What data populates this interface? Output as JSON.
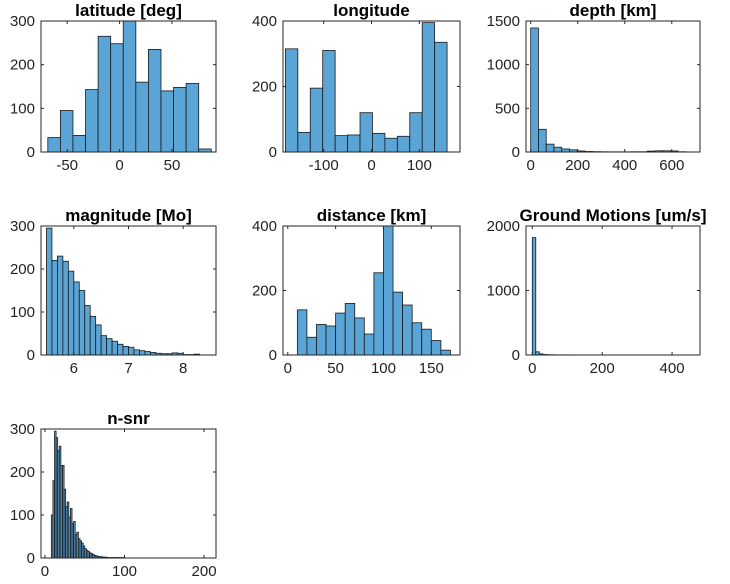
{
  "figure": {
    "background": "#ffffff",
    "bar_color": "#5ba4d6",
    "edge_color": "#1a1a1a"
  },
  "chart_data": [
    {
      "type": "bar",
      "title": "latitude [deg]",
      "xlim": [
        -75,
        92
      ],
      "ylim": [
        0,
        300
      ],
      "xticks": [
        -50,
        0,
        50
      ],
      "yticks": [
        0,
        100,
        200,
        300
      ],
      "bin_edges": [
        -68.5,
        -56.5,
        -44.5,
        -32.5,
        -20.5,
        -8.5,
        3.5,
        15.5,
        27.5,
        39.5,
        51.5,
        63.5,
        75.5,
        87.5
      ],
      "counts": [
        33,
        95,
        38,
        143,
        265,
        248,
        300,
        160,
        235,
        140,
        148,
        157,
        7,
        5
      ]
    },
    {
      "type": "bar",
      "title": "longitude",
      "xlim": [
        -185,
        185
      ],
      "ylim": [
        0,
        400
      ],
      "xticks": [
        -100,
        0,
        100
      ],
      "yticks": [
        0,
        200,
        400
      ],
      "bin_edges": [
        -180,
        -154,
        -128,
        -102,
        -76,
        -50,
        -24,
        2,
        28,
        54,
        80,
        106,
        132,
        158,
        184
      ],
      "counts": [
        315,
        60,
        195,
        310,
        50,
        52,
        120,
        57,
        42,
        48,
        120,
        395,
        335,
        0
      ]
    },
    {
      "type": "bar",
      "title": "depth [km]",
      "xlim": [
        -20,
        720
      ],
      "ylim": [
        0,
        1500
      ],
      "xticks": [
        0,
        200,
        400,
        600
      ],
      "yticks": [
        0,
        500,
        1000,
        1500
      ],
      "bin_edges": [
        0,
        33,
        66,
        99,
        132,
        165,
        198,
        231,
        264,
        297,
        330,
        363,
        396,
        429,
        462,
        495,
        528,
        561,
        594,
        627,
        660
      ],
      "counts": [
        1420,
        260,
        90,
        55,
        35,
        25,
        12,
        6,
        4,
        3,
        2,
        2,
        2,
        3,
        3,
        10,
        14,
        14,
        12,
        3
      ]
    },
    {
      "type": "bar",
      "title": "magnitude [Mo]",
      "xlim": [
        5.4,
        8.6
      ],
      "ylim": [
        0,
        300
      ],
      "xticks": [
        6,
        7,
        8
      ],
      "yticks": [
        0,
        100,
        200,
        300
      ],
      "bin_edges": [
        5.5,
        5.6,
        5.7,
        5.8,
        5.9,
        6.0,
        6.1,
        6.2,
        6.3,
        6.4,
        6.5,
        6.6,
        6.7,
        6.8,
        6.9,
        7.0,
        7.1,
        7.2,
        7.3,
        7.4,
        7.5,
        7.6,
        7.7,
        7.8,
        7.9,
        8.0,
        8.1,
        8.2,
        8.3
      ],
      "counts": [
        295,
        220,
        230,
        218,
        195,
        170,
        150,
        115,
        90,
        70,
        45,
        38,
        32,
        25,
        20,
        18,
        12,
        10,
        8,
        6,
        4,
        3,
        3,
        5,
        4,
        1,
        1,
        2
      ]
    },
    {
      "type": "bar",
      "title": "distance [km]",
      "xlim": [
        -5,
        180
      ],
      "ylim": [
        0,
        400
      ],
      "xticks": [
        0,
        50,
        100,
        150
      ],
      "yticks": [
        0,
        200,
        400
      ],
      "bin_edges": [
        10,
        20,
        30,
        40,
        50,
        60,
        70,
        80,
        90,
        100,
        110,
        120,
        130,
        140,
        150,
        160,
        170
      ],
      "counts": [
        140,
        55,
        95,
        90,
        130,
        160,
        115,
        65,
        255,
        400,
        195,
        155,
        100,
        80,
        45,
        15
      ]
    },
    {
      "type": "bar",
      "title": "Ground Motions [um/s]",
      "xlim": [
        -18,
        480
      ],
      "ylim": [
        0,
        2000
      ],
      "xticks": [
        0,
        200,
        400
      ],
      "yticks": [
        0,
        1000,
        2000
      ],
      "bin_edges": [
        0,
        10,
        20,
        30,
        40,
        50,
        60,
        70,
        80,
        90,
        100,
        110,
        120,
        130,
        140,
        150,
        160,
        170,
        180,
        190,
        200,
        210,
        220,
        230,
        240,
        250,
        260,
        270,
        280,
        290,
        300,
        310,
        320,
        330,
        340,
        350,
        360,
        370,
        380,
        390,
        400,
        410,
        420,
        430,
        440,
        450,
        460,
        470
      ],
      "counts": [
        1820,
        50,
        18,
        8,
        5,
        4,
        3,
        2,
        2,
        2,
        2,
        1,
        1,
        1,
        1,
        1,
        1,
        1,
        1,
        1,
        1,
        1,
        1,
        1,
        1,
        1,
        1,
        1,
        1,
        1,
        1,
        1,
        1,
        1,
        1,
        1,
        1,
        1,
        1,
        1,
        1,
        1,
        1,
        1,
        1,
        1,
        1
      ]
    },
    {
      "type": "bar",
      "title": "n-snr",
      "xlim": [
        -5,
        215
      ],
      "ylim": [
        0,
        300
      ],
      "xticks": [
        0,
        100,
        200
      ],
      "yticks": [
        0,
        100,
        200,
        300
      ],
      "bin_edges": [
        8,
        10,
        12,
        14,
        16,
        18,
        20,
        22,
        24,
        26,
        28,
        30,
        32,
        34,
        36,
        38,
        40,
        42,
        44,
        46,
        48,
        50,
        52,
        54,
        56,
        58,
        60,
        62,
        64,
        66,
        68,
        70,
        72,
        74,
        76,
        78,
        80,
        82,
        84,
        86,
        88,
        90,
        92,
        94,
        96,
        98,
        100
      ],
      "counts": [
        100,
        180,
        295,
        280,
        250,
        260,
        215,
        215,
        160,
        120,
        130,
        95,
        115,
        80,
        85,
        55,
        60,
        45,
        40,
        35,
        28,
        22,
        18,
        15,
        12,
        10,
        8,
        6,
        5,
        4,
        3,
        3,
        2,
        2,
        2,
        1,
        1,
        1,
        1,
        1,
        1,
        1,
        1,
        1,
        1,
        1
      ]
    }
  ]
}
